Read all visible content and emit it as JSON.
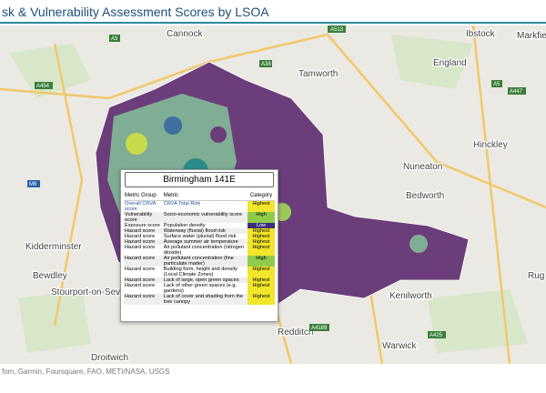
{
  "header": {
    "title": "sk & Vulnerability Assessment Scores by LSOA"
  },
  "places": [
    "Cannock",
    "Ibstock",
    "Markfield",
    "Tamworth",
    "England",
    "Hinckley",
    "Nuneaton",
    "Bedworth",
    "Kidderminster",
    "Bewdley",
    "Stourport-on-Severn",
    "Kenilworth",
    "Redditch",
    "Warwick",
    "Droitwich",
    "Rug"
  ],
  "roads": [
    "A513",
    "A5",
    "A454",
    "A447",
    "A38",
    "A4189",
    "A425",
    "A5",
    "M6"
  ],
  "attribution": "fom, Garmin, Foursquare, FAO, METI/NASA, USGS",
  "popup": {
    "title": "Birmingham 141E",
    "columns": [
      "Metric Group",
      "Metric",
      "Category"
    ],
    "rows": [
      {
        "group": "Overall CRVA score",
        "metric": "CRVA Total Risk",
        "category": "Highest",
        "color": "#f3e52b"
      },
      {
        "group": "Vulnerability score",
        "metric": "Socio-economic vulnerability score",
        "category": "High",
        "color": "#8fcc4c"
      },
      {
        "group": "Exposure score",
        "metric": "Population density",
        "category": "Low",
        "color": "#3a2f78"
      },
      {
        "group": "Hazard score",
        "metric": "Waterway (fluvial) flood risk",
        "category": "Highest",
        "color": "#f3e52b"
      },
      {
        "group": "Hazard score",
        "metric": "Surface water (pluvial) flood risk",
        "category": "Highest",
        "color": "#f3e52b"
      },
      {
        "group": "Hazard score",
        "metric": "Average summer air temperature",
        "category": "Highest",
        "color": "#f3e52b"
      },
      {
        "group": "Hazard score",
        "metric": "Air pollutant concentration (nitrogen dioxide)",
        "category": "Highest",
        "color": "#f3e52b"
      },
      {
        "group": "Hazard score",
        "metric": "Air pollutant concentration (fine particulate matter)",
        "category": "High",
        "color": "#8fcc4c"
      },
      {
        "group": "Hazard score",
        "metric": "Building form, height and density (Local Climate Zones)",
        "category": "Highest",
        "color": "#f3e52b"
      },
      {
        "group": "Hazard score",
        "metric": "Lack of large, open green spaces",
        "category": "Highest",
        "color": "#f3e52b"
      },
      {
        "group": "Hazard score",
        "metric": "Lack of other green spaces (e.g. gardens)",
        "category": "Highest",
        "color": "#f3e52b"
      },
      {
        "group": "Hazard score",
        "metric": "Lack of cover and shading from the tree canopy",
        "category": "Highest",
        "color": "#f3e52b"
      }
    ]
  }
}
